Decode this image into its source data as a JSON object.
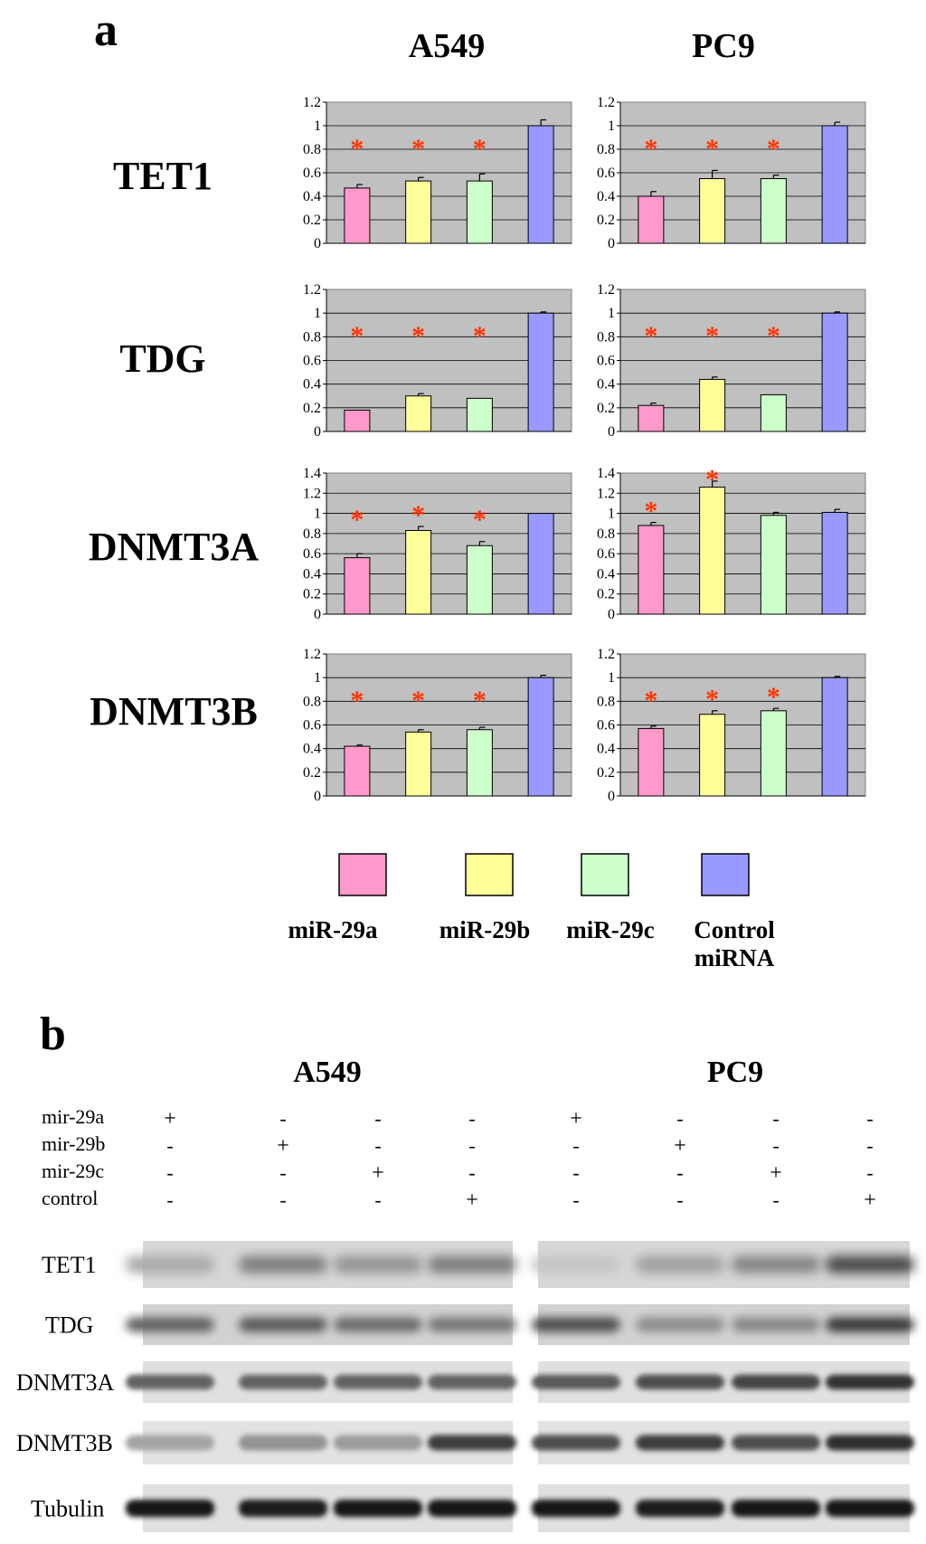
{
  "panel_a": {
    "label": "a",
    "cell_lines": [
      "A549",
      "PC9"
    ],
    "genes": [
      "TET1",
      "TDG",
      "DNMT3A",
      "DNMT3B"
    ]
  },
  "legend": [
    {
      "name": "miR-29a",
      "color": "#ff99cc"
    },
    {
      "name": "miR-29b",
      "color": "#ffff99"
    },
    {
      "name": "miR-29c",
      "color": "#ccffcc"
    },
    {
      "name": "Control miRNA",
      "name_lines": [
        "Control",
        "miRNA"
      ],
      "color": "#9999ff"
    }
  ],
  "colors": {
    "plot_bg": "#c0c0c0",
    "star": "#ff3300",
    "bar_edge": "#000000"
  },
  "chart_data": [
    {
      "type": "bar",
      "gene": "TET1",
      "cell_line": "A549",
      "categories": [
        "miR-29a",
        "miR-29b",
        "miR-29c",
        "Control miRNA"
      ],
      "values": [
        0.47,
        0.53,
        0.53,
        1.0
      ],
      "errors": [
        0.03,
        0.03,
        0.06,
        0.05
      ],
      "significant": [
        true,
        true,
        true,
        false
      ],
      "ylim": [
        0,
        1.2
      ],
      "ticks": [
        "0",
        "0.2",
        "0.4",
        "0.6",
        "0.8",
        "1",
        "1.2"
      ]
    },
    {
      "type": "bar",
      "gene": "TET1",
      "cell_line": "PC9",
      "categories": [
        "miR-29a",
        "miR-29b",
        "miR-29c",
        "Control miRNA"
      ],
      "values": [
        0.4,
        0.55,
        0.55,
        1.0
      ],
      "errors": [
        0.04,
        0.07,
        0.03,
        0.03
      ],
      "significant": [
        true,
        true,
        true,
        false
      ],
      "ylim": [
        0,
        1.2
      ],
      "ticks": [
        "0",
        "0.2",
        "0.4",
        "0.6",
        "0.8",
        "1",
        "1.2"
      ]
    },
    {
      "type": "bar",
      "gene": "TDG",
      "cell_line": "A549",
      "categories": [
        "miR-29a",
        "miR-29b",
        "miR-29c",
        "Control miRNA"
      ],
      "values": [
        0.18,
        0.3,
        0.28,
        1.0
      ],
      "errors": [
        0.0,
        0.02,
        0.0,
        0.01
      ],
      "significant": [
        true,
        true,
        true,
        false
      ],
      "ylim": [
        0,
        1.2
      ],
      "ticks": [
        "0",
        "0.2",
        "0.4",
        "0.6",
        "0.8",
        "1",
        "1.2"
      ]
    },
    {
      "type": "bar",
      "gene": "TDG",
      "cell_line": "PC9",
      "categories": [
        "miR-29a",
        "miR-29b",
        "miR-29c",
        "Control miRNA"
      ],
      "values": [
        0.22,
        0.44,
        0.31,
        1.0
      ],
      "errors": [
        0.02,
        0.02,
        0.0,
        0.01
      ],
      "significant": [
        true,
        true,
        true,
        false
      ],
      "ylim": [
        0,
        1.2
      ],
      "ticks": [
        "0",
        "0.2",
        "0.4",
        "0.6",
        "0.8",
        "1",
        "1.2"
      ]
    },
    {
      "type": "bar",
      "gene": "DNMT3A",
      "cell_line": "A549",
      "categories": [
        "miR-29a",
        "miR-29b",
        "miR-29c",
        "Control miRNA"
      ],
      "values": [
        0.56,
        0.83,
        0.68,
        1.0
      ],
      "errors": [
        0.04,
        0.04,
        0.04,
        0.0
      ],
      "significant": [
        true,
        true,
        true,
        false
      ],
      "ylim": [
        0,
        1.4
      ],
      "ticks": [
        "0",
        "0.2",
        "0.4",
        "0.6",
        "0.8",
        "1",
        "1.2",
        "1.4"
      ]
    },
    {
      "type": "bar",
      "gene": "DNMT3A",
      "cell_line": "PC9",
      "categories": [
        "miR-29a",
        "miR-29b",
        "miR-29c",
        "Control miRNA"
      ],
      "values": [
        0.88,
        1.26,
        0.98,
        1.01
      ],
      "errors": [
        0.03,
        0.06,
        0.03,
        0.03
      ],
      "significant": [
        true,
        true,
        false,
        false
      ],
      "ylim": [
        0,
        1.4
      ],
      "ticks": [
        "0",
        "0.2",
        "0.4",
        "0.6",
        "0.8",
        "1",
        "1.2",
        "1.4"
      ]
    },
    {
      "type": "bar",
      "gene": "DNMT3B",
      "cell_line": "A549",
      "categories": [
        "miR-29a",
        "miR-29b",
        "miR-29c",
        "Control miRNA"
      ],
      "values": [
        0.42,
        0.54,
        0.56,
        1.0
      ],
      "errors": [
        0.01,
        0.02,
        0.02,
        0.02
      ],
      "significant": [
        true,
        true,
        true,
        false
      ],
      "ylim": [
        0,
        1.2
      ],
      "ticks": [
        "0",
        "0.2",
        "0.4",
        "0.6",
        "0.8",
        "1",
        "1.2"
      ]
    },
    {
      "type": "bar",
      "gene": "DNMT3B",
      "cell_line": "PC9",
      "categories": [
        "miR-29a",
        "miR-29b",
        "miR-29c",
        "Control miRNA"
      ],
      "values": [
        0.57,
        0.69,
        0.72,
        1.0
      ],
      "errors": [
        0.02,
        0.03,
        0.02,
        0.01
      ],
      "significant": [
        true,
        true,
        true,
        false
      ],
      "ylim": [
        0,
        1.2
      ],
      "ticks": [
        "0",
        "0.2",
        "0.4",
        "0.6",
        "0.8",
        "1",
        "1.2"
      ]
    }
  ],
  "panel_b": {
    "label": "b",
    "cell_lines": [
      "A549",
      "PC9"
    ],
    "treatment_labels": [
      "mir-29a",
      "mir-29b",
      "mir-29c",
      "control"
    ],
    "treatment_matrix": [
      [
        "+",
        "-",
        "-",
        "-",
        "+",
        "-",
        "-",
        "-"
      ],
      [
        "-",
        "+",
        "-",
        "-",
        "-",
        "+",
        "-",
        "-"
      ],
      [
        "-",
        "-",
        "+",
        "-",
        "-",
        "-",
        "+",
        "-"
      ],
      [
        "-",
        "-",
        "-",
        "+",
        "-",
        "-",
        "-",
        "+"
      ]
    ],
    "blot_rows": [
      {
        "label": "TET1",
        "intensities": [
          0.28,
          0.5,
          0.38,
          0.5,
          0.14,
          0.32,
          0.46,
          0.75
        ],
        "blur": 6,
        "bg": 0.22
      },
      {
        "label": "TDG",
        "intensities": [
          0.62,
          0.66,
          0.58,
          0.52,
          0.72,
          0.42,
          0.44,
          0.82
        ],
        "blur": 5,
        "bg": 0.28
      },
      {
        "label": "DNMT3A",
        "intensities": [
          0.62,
          0.62,
          0.62,
          0.62,
          0.66,
          0.72,
          0.76,
          0.86
        ],
        "blur": 3,
        "bg": 0.12
      },
      {
        "label": "DNMT3B",
        "intensities": [
          0.3,
          0.38,
          0.34,
          0.8,
          0.72,
          0.8,
          0.72,
          0.88
        ],
        "blur": 3,
        "bg": 0.1
      },
      {
        "label": "Tubulin",
        "intensities": [
          0.98,
          0.96,
          0.98,
          1.0,
          0.98,
          0.96,
          0.98,
          1.0
        ],
        "blur": 3,
        "bg": 0.12
      }
    ]
  }
}
